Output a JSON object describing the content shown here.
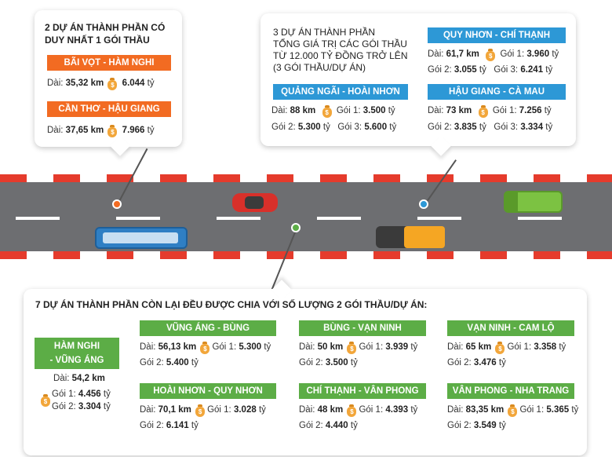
{
  "colors": {
    "orange": "#f26b22",
    "blue": "#2d98d6",
    "green": "#5cad46",
    "road": "#6d6e71",
    "curb_red": "#e53b2c",
    "curb_white": "#ffffff",
    "bag": "#f2a63a"
  },
  "icons": {
    "money_bag": "money-bag-icon",
    "bag_symbol": "$"
  },
  "box_left": {
    "title_1": "2 DỰ ÁN THÀNH PHẦN CÓ",
    "title_2": "DUY NHẤT 1 GÓI THẦU",
    "projects": [
      {
        "name": "BÃI VỌT - HÀM NGHI",
        "length_label": "Dài:",
        "length": "35,32 km",
        "amount": "6.044",
        "unit": "tỷ"
      },
      {
        "name": "CẦN THƠ - HẬU GIANG",
        "length_label": "Dài:",
        "length": "37,65 km",
        "amount": "7.966",
        "unit": "tỷ"
      }
    ]
  },
  "box_right": {
    "title_1": "3 DỰ ÁN THÀNH PHẦN",
    "title_2": "TỔNG GIÁ TRỊ CÁC GÓI THẦU",
    "title_3": "TỪ 12.000 TỶ ĐỒNG TRỞ LÊN",
    "title_4": "(3 GÓI THẦU/DỰ ÁN)",
    "projects": [
      {
        "name": "QUY NHƠN - CHÍ THẠNH",
        "length": "61,7 km",
        "g1": "3.960",
        "g2": "3.055",
        "g3": "6.241"
      },
      {
        "name": "QUẢNG NGÃI - HOÀI NHƠN",
        "length": "88 km",
        "g1": "3.500",
        "g2": "5.300",
        "g3": "5.600"
      },
      {
        "name": "HẬU GIANG - CÀ MAU",
        "length": "73 km",
        "g1": "7.256",
        "g2": "3.835",
        "g3": "3.334"
      }
    ]
  },
  "box_bottom": {
    "title": "7 DỰ ÁN THÀNH PHẦN CÒN LẠI ĐỀU ĐƯỢC CHIA VỚI SỐ LƯỢNG 2 GÓI THẦU/DỰ ÁN:",
    "ham_nghi": {
      "name_1": "HÀM NGHI",
      "name_2": "- VŨNG ÁNG",
      "length": "54,2 km",
      "g1": "4.456",
      "g2": "3.304"
    },
    "projects": [
      {
        "name": "VŨNG ÁNG - BÙNG",
        "length": "56,13 km",
        "g1": "5.300",
        "g2": "5.400"
      },
      {
        "name": "BÙNG - VẠN NINH",
        "length": "50 km",
        "g1": "3.939",
        "g2": "3.500"
      },
      {
        "name": "VẠN NINH - CAM LỘ",
        "length": "65 km",
        "g1": "3.358",
        "g2": "3.476"
      },
      {
        "name": "HOÀI NHƠN - QUY NHƠN",
        "length": "70,1 km",
        "g1": "3.028",
        "g2": "6.141"
      },
      {
        "name": "CHÍ THẠNH - VÂN PHONG",
        "length": "48 km",
        "g1": "4.393",
        "g2": "4.440"
      },
      {
        "name": "VÂN PHONG - NHA TRANG",
        "length": "83,35 km",
        "g1": "5.365",
        "g2": "3.549"
      }
    ]
  },
  "labels": {
    "dai": "Dài:",
    "goi1": "Gói 1:",
    "goi2": "Gói 2:",
    "goi3": "Gói 3:",
    "ty": "tỷ"
  }
}
